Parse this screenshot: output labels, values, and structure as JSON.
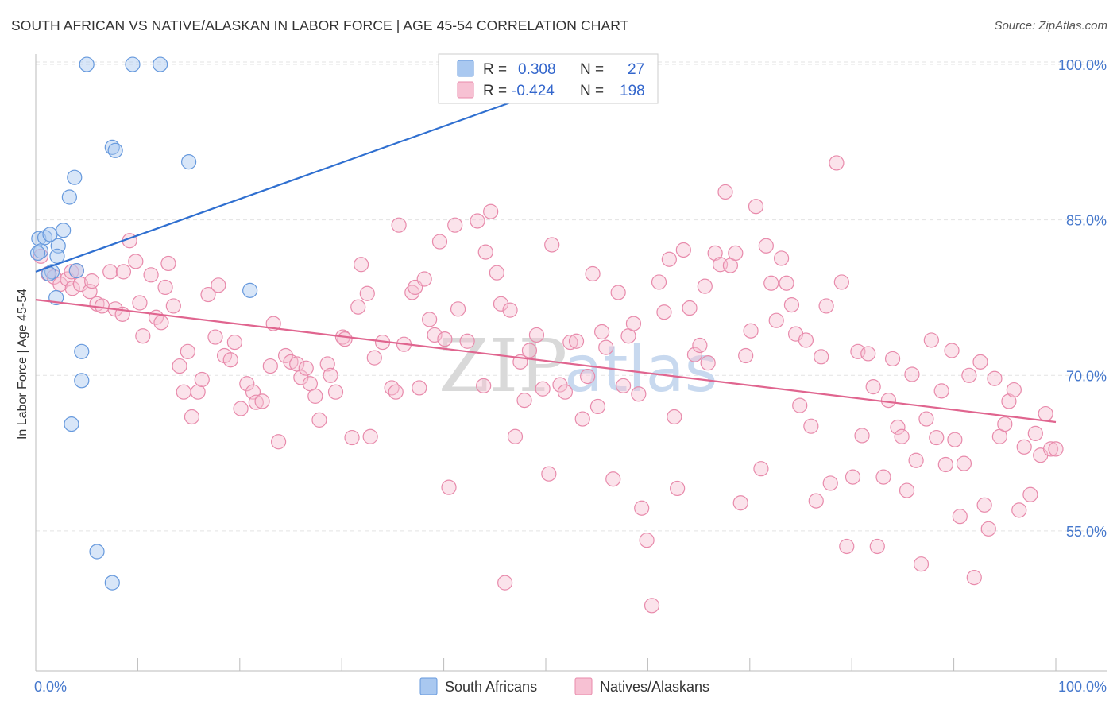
{
  "header": {
    "title": "SOUTH AFRICAN VS NATIVE/ALASKAN IN LABOR FORCE | AGE 45-54 CORRELATION CHART",
    "source": "Source: ZipAtlas.com"
  },
  "watermark": {
    "part1": "ZIP",
    "part2": "atlas"
  },
  "legend_box": {
    "rows": [
      {
        "r_label": "R =",
        "r_value": "0.308",
        "n_label": "N =",
        "n_value": "27"
      },
      {
        "r_label": "R =",
        "r_value": "-0.424",
        "n_label": "N =",
        "n_value": "198"
      }
    ]
  },
  "bottom_legend": [
    "South Africans",
    "Natives/Alaskans"
  ],
  "colors": {
    "south_africans_fill": "#a9c8f0",
    "south_africans_stroke": "#6699dd",
    "south_africans_line": "#2f6fd0",
    "natives_fill": "#f7c1d3",
    "natives_stroke": "#e88aab",
    "natives_line": "#e0658f",
    "tick_text": "#4477cc"
  },
  "chart_data": {
    "type": "scatter",
    "title": "SOUTH AFRICAN VS NATIVE/ALASKAN IN LABOR FORCE | AGE 45-54 CORRELATION CHART",
    "xlabel": "",
    "ylabel": "In Labor Force | Age 45-54",
    "xlim": [
      0,
      100
    ],
    "ylim": [
      41.5,
      101
    ],
    "x_tick_labels": [
      "0.0%",
      "100.0%"
    ],
    "y_ticks": [
      55,
      70,
      85,
      100
    ],
    "y_tick_labels": [
      "55.0%",
      "70.0%",
      "85.0%",
      "100.0%"
    ],
    "grid": "horizontal dashed",
    "legend_position": "bottom",
    "series": [
      {
        "name": "South Africans",
        "R": 0.308,
        "N": 27,
        "trend": {
          "x": [
            0,
            57
          ],
          "y": [
            80.0,
            100.0
          ]
        },
        "points": [
          [
            0.3,
            83.2
          ],
          [
            0.9,
            83.3
          ],
          [
            0.5,
            82.0
          ],
          [
            1.4,
            83.6
          ],
          [
            2.7,
            84.0
          ],
          [
            2.2,
            82.5
          ],
          [
            2.1,
            81.5
          ],
          [
            1.6,
            80.0
          ],
          [
            1.3,
            79.8
          ],
          [
            2.0,
            77.5
          ],
          [
            4.0,
            80.1
          ],
          [
            3.3,
            87.2
          ],
          [
            3.8,
            89.1
          ],
          [
            7.5,
            92.0
          ],
          [
            7.8,
            91.7
          ],
          [
            15.0,
            90.6
          ],
          [
            5.0,
            100.0
          ],
          [
            9.5,
            100.0
          ],
          [
            12.2,
            100.0
          ],
          [
            21.0,
            78.2
          ],
          [
            4.5,
            72.3
          ],
          [
            4.5,
            69.5
          ],
          [
            3.5,
            65.3
          ],
          [
            6.0,
            53.0
          ],
          [
            7.5,
            50.0
          ],
          [
            57.0,
            100.0
          ],
          [
            0.2,
            81.8
          ]
        ]
      },
      {
        "name": "Natives/Alaskans",
        "R": -0.424,
        "N": 198,
        "trend": {
          "x": [
            0,
            100
          ],
          "y": [
            77.3,
            65.5
          ]
        },
        "points": [
          [
            0.5,
            81.5
          ],
          [
            1.2,
            79.8
          ],
          [
            1.8,
            79.5
          ],
          [
            2.4,
            78.8
          ],
          [
            3.1,
            79.3
          ],
          [
            3.5,
            80.0
          ],
          [
            3.6,
            78.4
          ],
          [
            4.0,
            80.1
          ],
          [
            4.4,
            78.8
          ],
          [
            5.3,
            78.1
          ],
          [
            5.5,
            79.1
          ],
          [
            6.0,
            76.9
          ],
          [
            6.5,
            76.7
          ],
          [
            7.3,
            80.0
          ],
          [
            7.8,
            76.4
          ],
          [
            8.5,
            75.9
          ],
          [
            8.6,
            80.0
          ],
          [
            9.2,
            83.0
          ],
          [
            9.8,
            81.0
          ],
          [
            10.2,
            77.0
          ],
          [
            10.5,
            73.8
          ],
          [
            11.3,
            79.7
          ],
          [
            11.8,
            75.6
          ],
          [
            12.3,
            75.1
          ],
          [
            12.7,
            78.5
          ],
          [
            13.0,
            80.8
          ],
          [
            13.5,
            76.7
          ],
          [
            14.1,
            70.9
          ],
          [
            14.5,
            68.4
          ],
          [
            14.9,
            72.3
          ],
          [
            15.3,
            66.0
          ],
          [
            15.9,
            68.4
          ],
          [
            16.3,
            69.6
          ],
          [
            16.9,
            77.8
          ],
          [
            17.6,
            73.7
          ],
          [
            17.9,
            78.7
          ],
          [
            18.5,
            71.9
          ],
          [
            19.1,
            71.5
          ],
          [
            19.5,
            73.2
          ],
          [
            20.1,
            66.8
          ],
          [
            20.7,
            69.2
          ],
          [
            21.3,
            68.4
          ],
          [
            21.6,
            67.4
          ],
          [
            22.2,
            67.5
          ],
          [
            23.0,
            70.9
          ],
          [
            23.3,
            75.0
          ],
          [
            23.8,
            63.6
          ],
          [
            24.5,
            71.9
          ],
          [
            25.0,
            71.3
          ],
          [
            25.6,
            71.1
          ],
          [
            26.0,
            69.8
          ],
          [
            26.5,
            70.7
          ],
          [
            26.9,
            69.2
          ],
          [
            27.4,
            68.0
          ],
          [
            27.8,
            65.7
          ],
          [
            28.6,
            71.1
          ],
          [
            28.9,
            70.0
          ],
          [
            29.4,
            68.4
          ],
          [
            30.1,
            73.7
          ],
          [
            30.3,
            73.5
          ],
          [
            31.0,
            64.0
          ],
          [
            31.6,
            76.6
          ],
          [
            31.9,
            80.7
          ],
          [
            32.5,
            77.9
          ],
          [
            32.8,
            64.1
          ],
          [
            33.2,
            71.7
          ],
          [
            34.0,
            73.2
          ],
          [
            34.9,
            68.8
          ],
          [
            35.3,
            68.4
          ],
          [
            35.6,
            84.5
          ],
          [
            36.1,
            73.0
          ],
          [
            36.9,
            78.0
          ],
          [
            37.2,
            78.5
          ],
          [
            37.6,
            68.8
          ],
          [
            38.1,
            79.3
          ],
          [
            38.6,
            75.4
          ],
          [
            39.1,
            73.9
          ],
          [
            39.6,
            82.9
          ],
          [
            40.1,
            73.5
          ],
          [
            40.5,
            59.2
          ],
          [
            41.1,
            84.5
          ],
          [
            41.4,
            76.4
          ],
          [
            42.3,
            73.3
          ],
          [
            43.3,
            84.9
          ],
          [
            43.9,
            69.0
          ],
          [
            44.1,
            81.9
          ],
          [
            44.6,
            85.8
          ],
          [
            45.2,
            79.9
          ],
          [
            45.6,
            76.9
          ],
          [
            46.0,
            50.0
          ],
          [
            46.5,
            76.3
          ],
          [
            47.0,
            64.1
          ],
          [
            47.5,
            71.3
          ],
          [
            47.9,
            67.6
          ],
          [
            48.4,
            72.4
          ],
          [
            49.1,
            73.9
          ],
          [
            49.7,
            68.7
          ],
          [
            50.3,
            60.5
          ],
          [
            50.6,
            82.6
          ],
          [
            51.4,
            69.1
          ],
          [
            51.9,
            68.4
          ],
          [
            52.4,
            73.2
          ],
          [
            53.0,
            73.3
          ],
          [
            53.6,
            65.8
          ],
          [
            54.1,
            69.9
          ],
          [
            54.6,
            79.8
          ],
          [
            55.1,
            67.0
          ],
          [
            55.5,
            74.2
          ],
          [
            55.9,
            72.7
          ],
          [
            56.6,
            60.0
          ],
          [
            57.1,
            78.0
          ],
          [
            57.6,
            69.0
          ],
          [
            58.1,
            73.8
          ],
          [
            58.6,
            75.0
          ],
          [
            59.1,
            68.2
          ],
          [
            59.4,
            57.2
          ],
          [
            59.9,
            54.1
          ],
          [
            60.4,
            47.8
          ],
          [
            61.1,
            79.0
          ],
          [
            61.6,
            76.1
          ],
          [
            62.1,
            81.2
          ],
          [
            62.6,
            66.0
          ],
          [
            62.9,
            59.1
          ],
          [
            63.5,
            82.1
          ],
          [
            64.1,
            76.5
          ],
          [
            64.6,
            72.0
          ],
          [
            65.1,
            72.9
          ],
          [
            65.6,
            78.6
          ],
          [
            65.9,
            71.2
          ],
          [
            66.6,
            81.8
          ],
          [
            67.1,
            80.7
          ],
          [
            67.6,
            87.7
          ],
          [
            68.1,
            80.6
          ],
          [
            68.6,
            81.8
          ],
          [
            69.1,
            57.7
          ],
          [
            69.6,
            71.9
          ],
          [
            70.1,
            74.3
          ],
          [
            70.6,
            86.3
          ],
          [
            71.1,
            61.0
          ],
          [
            71.6,
            82.5
          ],
          [
            72.1,
            78.9
          ],
          [
            72.6,
            75.3
          ],
          [
            73.1,
            81.3
          ],
          [
            73.6,
            78.9
          ],
          [
            74.1,
            76.8
          ],
          [
            74.5,
            74.0
          ],
          [
            74.9,
            67.1
          ],
          [
            75.5,
            73.4
          ],
          [
            76.0,
            65.1
          ],
          [
            76.5,
            57.9
          ],
          [
            77.0,
            71.8
          ],
          [
            77.5,
            76.7
          ],
          [
            77.9,
            59.6
          ],
          [
            78.5,
            90.5
          ],
          [
            79.0,
            79.0
          ],
          [
            79.5,
            53.5
          ],
          [
            80.1,
            60.2
          ],
          [
            80.6,
            72.3
          ],
          [
            81.0,
            64.2
          ],
          [
            81.6,
            72.1
          ],
          [
            82.1,
            68.9
          ],
          [
            82.5,
            53.5
          ],
          [
            83.1,
            60.2
          ],
          [
            83.6,
            67.6
          ],
          [
            84.0,
            71.6
          ],
          [
            84.5,
            65.0
          ],
          [
            84.9,
            64.1
          ],
          [
            85.4,
            58.9
          ],
          [
            85.9,
            70.1
          ],
          [
            86.3,
            61.8
          ],
          [
            86.8,
            51.8
          ],
          [
            87.3,
            65.8
          ],
          [
            87.8,
            73.4
          ],
          [
            88.3,
            64.0
          ],
          [
            88.8,
            68.5
          ],
          [
            89.2,
            61.4
          ],
          [
            89.8,
            72.4
          ],
          [
            90.1,
            63.8
          ],
          [
            90.6,
            56.4
          ],
          [
            91.0,
            61.5
          ],
          [
            91.5,
            70.0
          ],
          [
            92.0,
            50.5
          ],
          [
            92.6,
            71.3
          ],
          [
            93.0,
            57.5
          ],
          [
            93.4,
            55.2
          ],
          [
            94.0,
            69.7
          ],
          [
            94.5,
            64.1
          ],
          [
            95.0,
            65.3
          ],
          [
            95.4,
            67.5
          ],
          [
            95.9,
            68.6
          ],
          [
            96.4,
            57.0
          ],
          [
            96.9,
            63.1
          ],
          [
            97.5,
            58.5
          ],
          [
            98.0,
            64.4
          ],
          [
            98.5,
            62.3
          ],
          [
            99.0,
            66.3
          ],
          [
            99.5,
            62.9
          ],
          [
            100.0,
            62.9
          ]
        ]
      }
    ]
  }
}
